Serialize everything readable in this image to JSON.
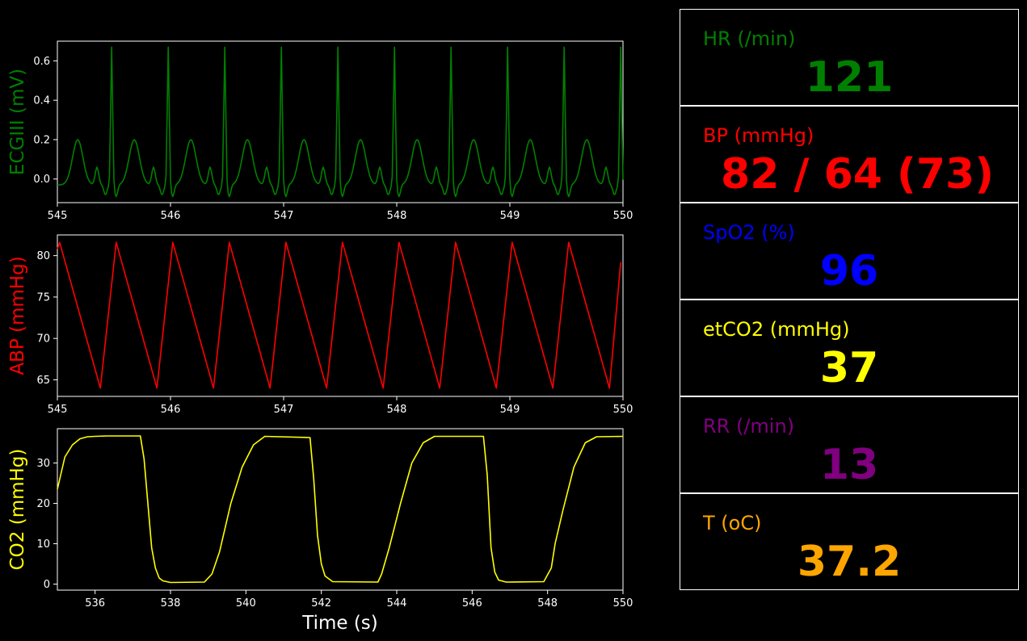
{
  "colors": {
    "background": "#000000",
    "ecg": "#008000",
    "abp": "#ff0000",
    "co2": "#ffff00",
    "spo2": "#0000ff",
    "rr": "#800080",
    "temp": "#ffa500",
    "frame": "#ffffff"
  },
  "chart_data": [
    {
      "type": "line",
      "ylabel": "ECGIII (mV)",
      "xlim": [
        545,
        550
      ],
      "ylim": [
        -0.12,
        0.7
      ],
      "xticks": [
        545,
        546,
        547,
        548,
        549,
        550
      ],
      "yticks": [
        0.0,
        0.2,
        0.4,
        0.6
      ],
      "ytick_labels": [
        "0.0",
        "0.2",
        "0.4",
        "0.6"
      ],
      "grid": false,
      "series": [
        {
          "color": "#008000",
          "beat_times": [
            545.48,
            545.98,
            546.48,
            546.98,
            547.48,
            547.98,
            548.48,
            548.98,
            549.48,
            549.98
          ],
          "baseline": -0.03,
          "t_wave_peak": 0.2,
          "p_wave_peak": 0.06,
          "r_peak": 0.67,
          "s_trough": -0.09
        }
      ]
    },
    {
      "type": "line",
      "ylabel": "ABP (mmHg)",
      "xlim": [
        545,
        550
      ],
      "ylim": [
        63,
        82.5
      ],
      "xticks": [
        545,
        546,
        547,
        548,
        549,
        550
      ],
      "yticks": [
        65,
        70,
        75,
        80
      ],
      "ytick_labels": [
        "65",
        "70",
        "75",
        "80"
      ],
      "grid": false,
      "series": [
        {
          "color": "#ff0000",
          "x": [
            545.0,
            545.02,
            545.38,
            545.52,
            545.88,
            546.02,
            546.38,
            546.52,
            546.88,
            547.02,
            547.38,
            547.52,
            547.88,
            548.02,
            548.38,
            548.52,
            548.88,
            549.02,
            549.38,
            549.52,
            549.88,
            549.98
          ],
          "y": [
            80.8,
            81.6,
            64.0,
            81.6,
            64.0,
            81.6,
            64.0,
            81.6,
            64.0,
            81.6,
            64.0,
            81.6,
            64.0,
            81.6,
            64.0,
            81.6,
            64.0,
            81.6,
            64.0,
            81.6,
            64.0,
            79.2
          ]
        }
      ]
    },
    {
      "type": "line",
      "ylabel": "CO2 (mmHg)",
      "xlabel": "Time (s)",
      "xlim": [
        535,
        550
      ],
      "ylim": [
        -1.5,
        38.5
      ],
      "xticks": [
        536,
        538,
        540,
        542,
        544,
        546,
        548,
        550
      ],
      "yticks": [
        0,
        10,
        20,
        30
      ],
      "ytick_labels": [
        "0",
        "10",
        "20",
        "30"
      ],
      "grid": false,
      "series": [
        {
          "color": "#ffff00",
          "x": [
            535.0,
            535.2,
            535.4,
            535.6,
            535.8,
            536.0,
            536.3,
            537.2,
            537.3,
            537.5,
            537.6,
            537.7,
            537.8,
            538.0,
            538.9,
            539.1,
            539.3,
            539.6,
            539.9,
            540.2,
            540.5,
            541.7,
            541.8,
            541.9,
            542.0,
            542.1,
            542.3,
            543.5,
            543.6,
            543.8,
            544.1,
            544.4,
            544.7,
            545.0,
            546.3,
            546.4,
            546.5,
            546.6,
            546.7,
            546.9,
            547.9,
            548.1,
            548.2,
            548.4,
            548.7,
            549.0,
            549.3,
            550.0
          ],
          "y": [
            23.5,
            31.5,
            34.5,
            36,
            36.5,
            36.6,
            36.7,
            36.7,
            31,
            9,
            4,
            1.5,
            0.8,
            0.4,
            0.5,
            2.5,
            8,
            20,
            29,
            34.5,
            36.6,
            36.3,
            26,
            12,
            5,
            2,
            0.6,
            0.5,
            2.5,
            9,
            20,
            30,
            35,
            36.6,
            36.6,
            27,
            9,
            3,
            1,
            0.5,
            0.6,
            4,
            10,
            18,
            29,
            35,
            36.5,
            36.6
          ]
        }
      ]
    }
  ],
  "vitals": [
    {
      "label": "HR (/min)",
      "value": "121",
      "color": "#008000"
    },
    {
      "label": "BP  (mmHg)",
      "value": "82 / 64 (73)",
      "color": "#ff0000"
    },
    {
      "label": "SpO2 (%)",
      "value": "96",
      "color": "#0000ff"
    },
    {
      "label": "etCO2 (mmHg)",
      "value": "37",
      "color": "#ffff00"
    },
    {
      "label": "RR (/min)",
      "value": "13",
      "color": "#800080"
    },
    {
      "label": "T (oC)",
      "value": "37.2",
      "color": "#ffa500"
    }
  ]
}
